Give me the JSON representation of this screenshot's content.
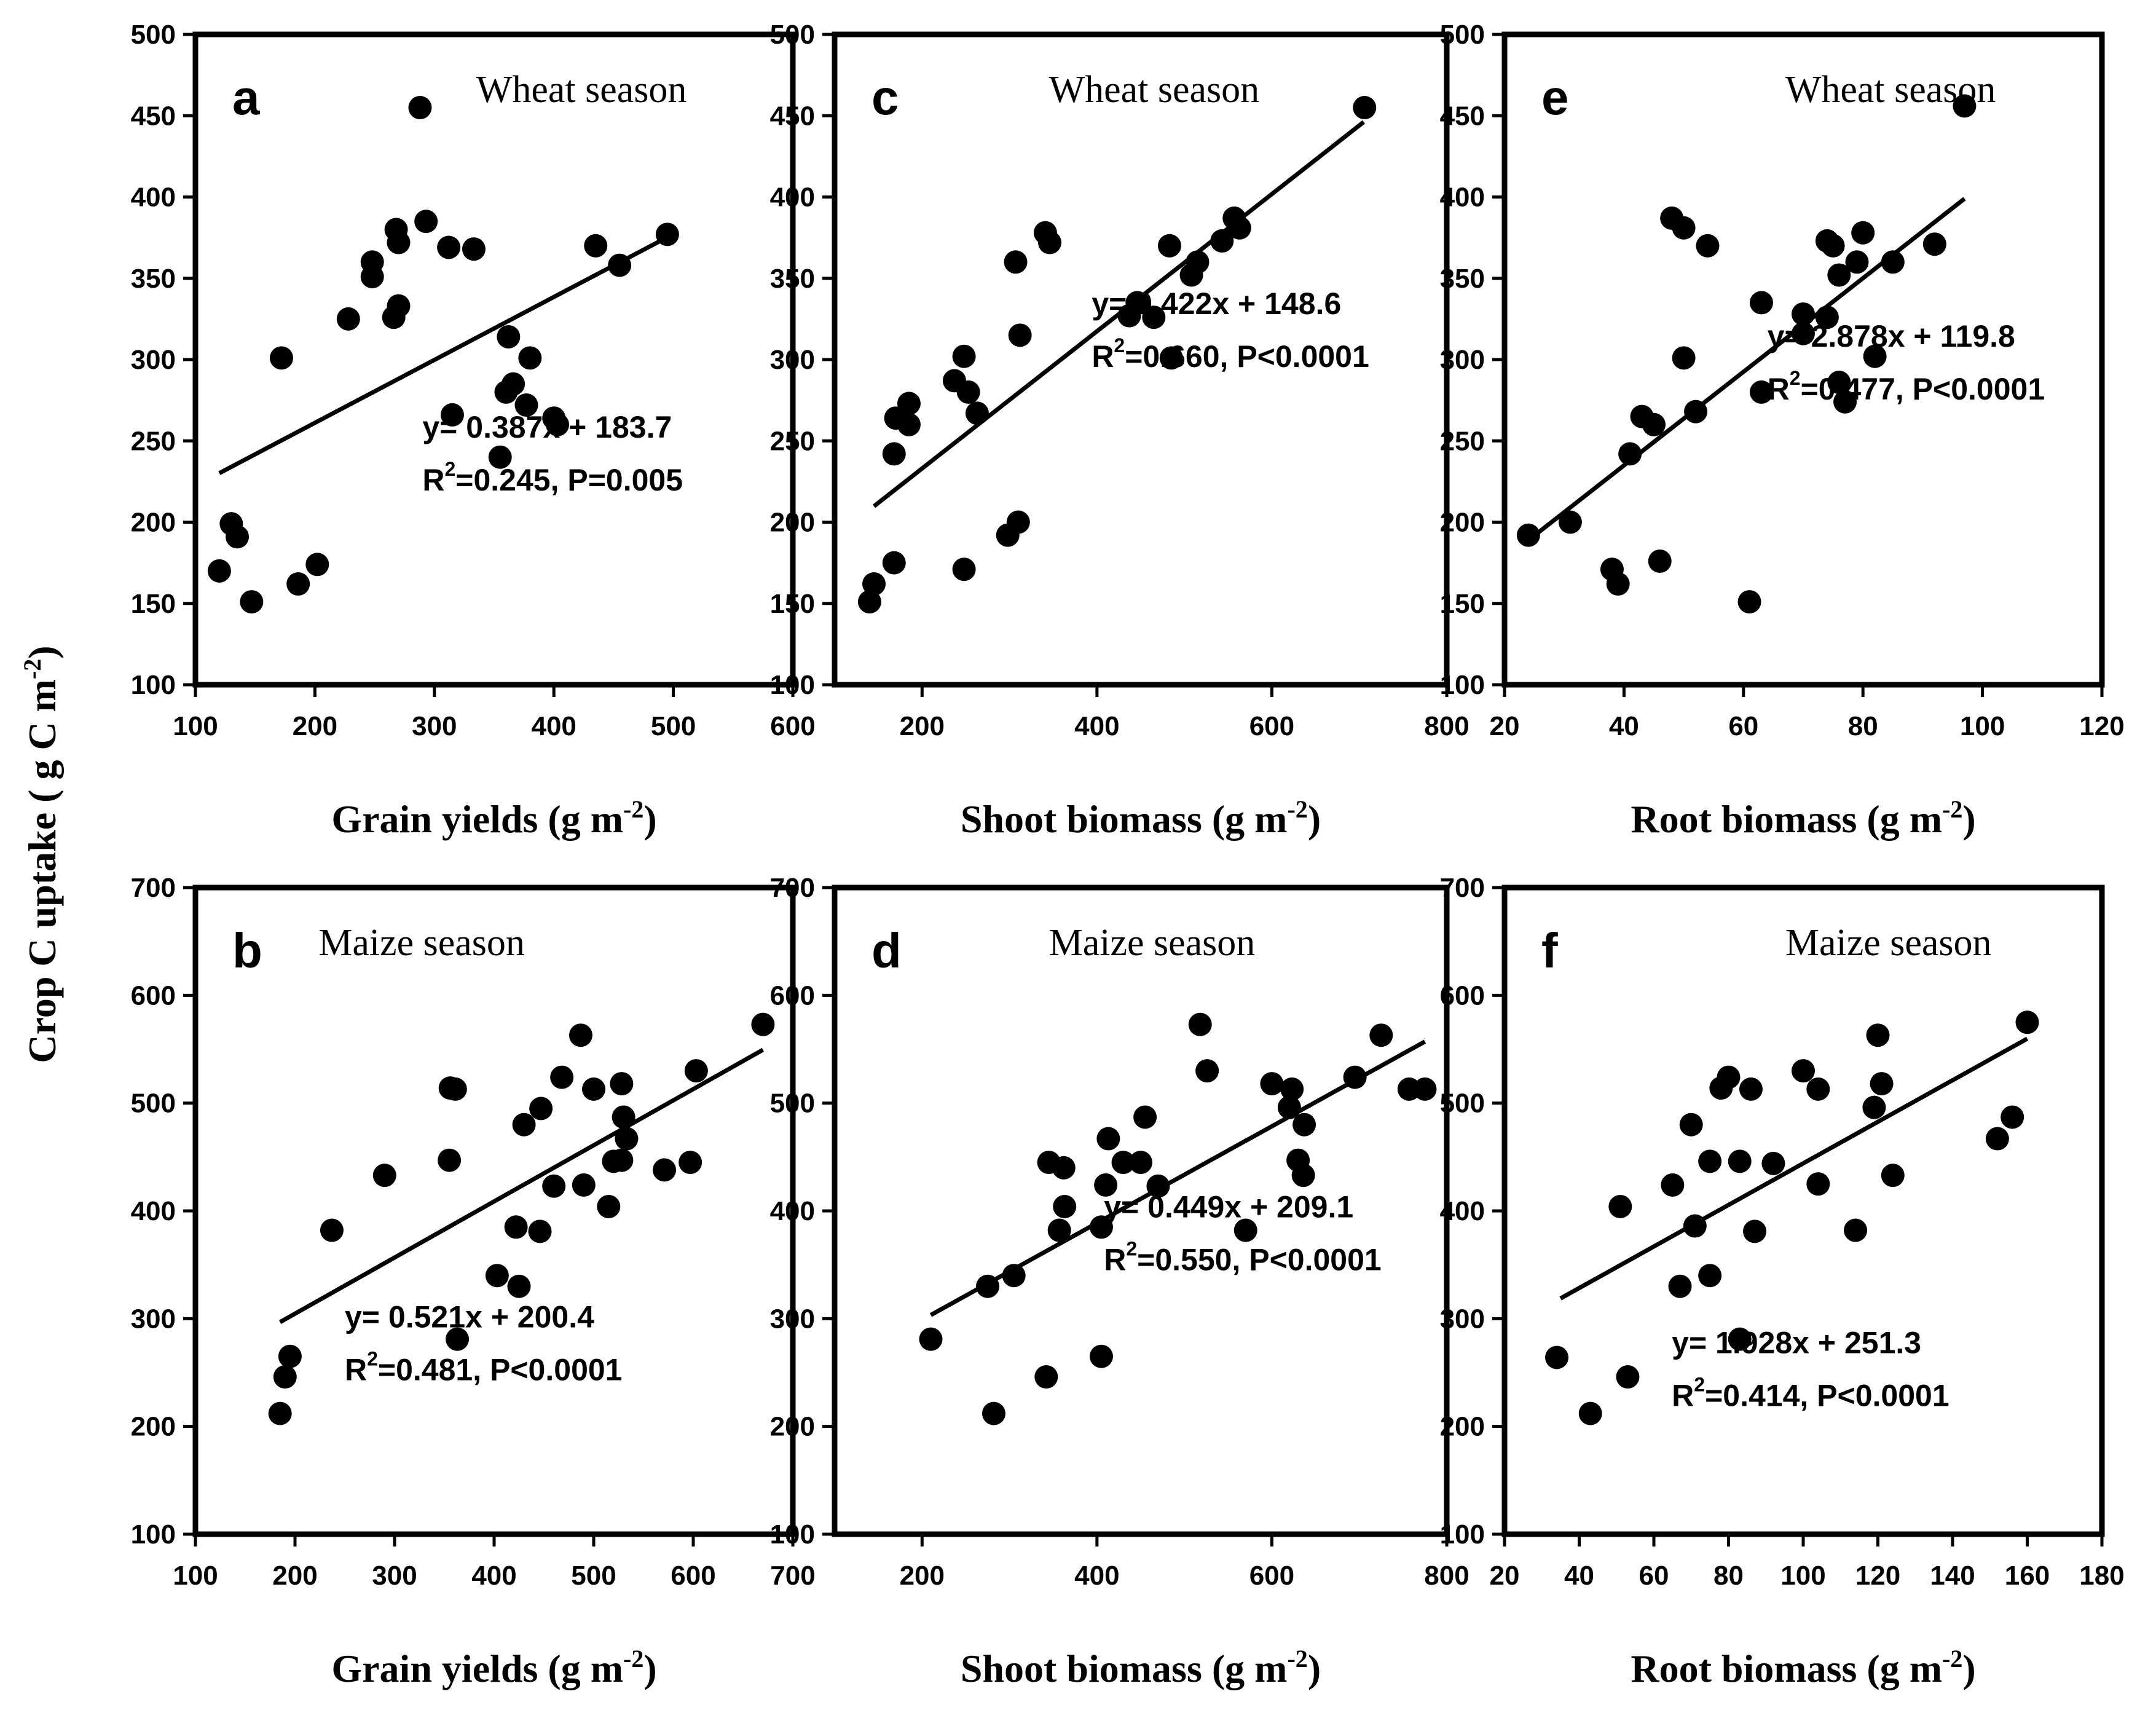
{
  "ylabel_shared": {
    "main": "Crop C uptake ( g C m",
    "sup": "-2",
    "end": ")"
  },
  "chart_data": [
    {
      "id": "a",
      "type": "scatter",
      "panel_label": "a",
      "season": "Wheat season",
      "xlabel": {
        "main": "Grain yields (g m",
        "sup": "-2",
        "end": ")"
      },
      "xlim": [
        100,
        600
      ],
      "ylim": [
        100,
        500
      ],
      "xticks": [
        "100",
        "200",
        "300",
        "400",
        "500",
        "600"
      ],
      "yticks": [
        "100",
        "150",
        "200",
        "250",
        "300",
        "350",
        "400",
        "450",
        "500"
      ],
      "regression": {
        "slope": 0.387,
        "intercept": 183.7,
        "x_range": [
          120,
          495
        ]
      },
      "equation": "y= 0.387x + 183.7",
      "stats": {
        "r": "R",
        "sup": "2",
        "rest": "=0.245, P=0.005"
      },
      "points": [
        [
          288,
          455
        ],
        [
          293,
          385
        ],
        [
          268,
          380
        ],
        [
          270,
          372
        ],
        [
          312,
          369
        ],
        [
          333,
          368
        ],
        [
          248,
          360
        ],
        [
          248,
          351
        ],
        [
          270,
          333
        ],
        [
          266,
          326
        ],
        [
          228,
          325
        ],
        [
          435,
          370
        ],
        [
          455,
          358
        ],
        [
          495,
          377
        ],
        [
          362,
          314
        ],
        [
          380,
          301
        ],
        [
          366,
          285
        ],
        [
          360,
          280
        ],
        [
          377,
          272
        ],
        [
          400,
          264
        ],
        [
          403,
          260
        ],
        [
          315,
          266
        ],
        [
          355,
          240
        ],
        [
          172,
          301
        ],
        [
          130,
          199
        ],
        [
          135,
          191
        ],
        [
          120,
          170
        ],
        [
          147,
          151
        ],
        [
          186,
          162
        ],
        [
          202,
          174
        ]
      ]
    },
    {
      "id": "c",
      "type": "scatter",
      "panel_label": "c",
      "season": "Wheat season",
      "xlabel": {
        "main": "Shoot biomass (g m",
        "sup": "-2",
        "end": ")"
      },
      "xlim": [
        100,
        800
      ],
      "ylim": [
        100,
        500
      ],
      "xticks": [
        "200",
        "400",
        "600",
        "800"
      ],
      "yticks": [
        "100",
        "150",
        "200",
        "250",
        "300",
        "350",
        "400",
        "450",
        "500"
      ],
      "regression": {
        "slope": 0.422,
        "intercept": 148.6,
        "x_range": [
          145,
          705
        ]
      },
      "equation": "y= 0.422x + 148.6",
      "stats": {
        "r": "R",
        "sup": "2",
        "rest": "=0.660, P<0.0001"
      },
      "points": [
        [
          706,
          455
        ],
        [
          557,
          387
        ],
        [
          563,
          381
        ],
        [
          341,
          378
        ],
        [
          346,
          372
        ],
        [
          543,
          373
        ],
        [
          483,
          370
        ],
        [
          515,
          360
        ],
        [
          508,
          352
        ],
        [
          307,
          360
        ],
        [
          446,
          335
        ],
        [
          437,
          327
        ],
        [
          465,
          326
        ],
        [
          485,
          301
        ],
        [
          312,
          315
        ],
        [
          248,
          302
        ],
        [
          253,
          280
        ],
        [
          237,
          287
        ],
        [
          263,
          267
        ],
        [
          185,
          273
        ],
        [
          170,
          264
        ],
        [
          168,
          242
        ],
        [
          185,
          260
        ],
        [
          298,
          192
        ],
        [
          310,
          200
        ],
        [
          168,
          175
        ],
        [
          248,
          171
        ],
        [
          145,
          162
        ],
        [
          140,
          151
        ]
      ]
    },
    {
      "id": "e",
      "type": "scatter",
      "panel_label": "e",
      "season": "Wheat season",
      "xlabel": {
        "main": "Root biomass (g m",
        "sup": "-2",
        "end": ")"
      },
      "xlim": [
        20,
        120
      ],
      "ylim": [
        100,
        500
      ],
      "xticks": [
        "20",
        "40",
        "60",
        "80",
        "100",
        "120"
      ],
      "yticks": [
        "100",
        "150",
        "200",
        "250",
        "300",
        "350",
        "400",
        "450",
        "500"
      ],
      "regression": {
        "slope": 2.878,
        "intercept": 119.8,
        "x_range": [
          24,
          97
        ]
      },
      "equation": "y= 2.878x + 119.8",
      "stats": {
        "r": "R",
        "sup": "2",
        "rest": "=0.477, P<0.0001"
      },
      "points": [
        [
          97,
          456
        ],
        [
          48,
          387
        ],
        [
          50,
          381
        ],
        [
          54,
          370
        ],
        [
          74,
          373
        ],
        [
          75,
          370
        ],
        [
          80,
          378
        ],
        [
          79,
          360
        ],
        [
          76,
          352
        ],
        [
          85,
          360
        ],
        [
          92,
          371
        ],
        [
          63,
          335
        ],
        [
          70,
          328
        ],
        [
          74,
          326
        ],
        [
          70,
          316
        ],
        [
          50,
          301
        ],
        [
          82,
          302
        ],
        [
          63,
          280
        ],
        [
          76,
          286
        ],
        [
          77,
          274
        ],
        [
          43,
          265
        ],
        [
          45,
          260
        ],
        [
          52,
          268
        ],
        [
          41,
          242
        ],
        [
          24,
          192
        ],
        [
          31,
          200
        ],
        [
          38,
          171
        ],
        [
          39,
          162
        ],
        [
          46,
          176
        ],
        [
          61,
          151
        ]
      ]
    },
    {
      "id": "b",
      "type": "scatter",
      "panel_label": "b",
      "season": "Maize season",
      "xlabel": {
        "main": "Grain yields (g m",
        "sup": "-2",
        "end": ")"
      },
      "xlim": [
        100,
        700
      ],
      "ylim": [
        100,
        700
      ],
      "xticks": [
        "100",
        "200",
        "300",
        "400",
        "500",
        "600",
        "700"
      ],
      "yticks": [
        "100",
        "200",
        "300",
        "400",
        "500",
        "600",
        "700"
      ],
      "regression": {
        "slope": 0.521,
        "intercept": 200.4,
        "x_range": [
          185,
          670
        ]
      },
      "equation": "y= 0.521x + 200.4",
      "stats": {
        "r": "R",
        "sup": "2",
        "rest": "=0.481, P<0.0001"
      },
      "points": [
        [
          670,
          573
        ],
        [
          487,
          563
        ],
        [
          356,
          514
        ],
        [
          361,
          513
        ],
        [
          468,
          524
        ],
        [
          528,
          518
        ],
        [
          603,
          530
        ],
        [
          500,
          513
        ],
        [
          447,
          495
        ],
        [
          530,
          487
        ],
        [
          533,
          467
        ],
        [
          355,
          447
        ],
        [
          290,
          433
        ],
        [
          237,
          382
        ],
        [
          520,
          446
        ],
        [
          528,
          447
        ],
        [
          571,
          438
        ],
        [
          597,
          445
        ],
        [
          460,
          423
        ],
        [
          490,
          424
        ],
        [
          515,
          404
        ],
        [
          430,
          480
        ],
        [
          422,
          385
        ],
        [
          446,
          381
        ],
        [
          403,
          340
        ],
        [
          425,
          330
        ],
        [
          363,
          281
        ],
        [
          195,
          265
        ],
        [
          190,
          246
        ],
        [
          185,
          212
        ]
      ]
    },
    {
      "id": "d",
      "type": "scatter",
      "panel_label": "d",
      "season": "Maize season",
      "xlabel": {
        "main": "Shoot biomass (g m",
        "sup": "-2",
        "end": ")"
      },
      "xlim": [
        100,
        800
      ],
      "ylim": [
        100,
        700
      ],
      "xticks": [
        "200",
        "400",
        "600",
        "800"
      ],
      "yticks": [
        "100",
        "200",
        "300",
        "400",
        "500",
        "600",
        "700"
      ],
      "regression": {
        "slope": 0.449,
        "intercept": 209.1,
        "x_range": [
          210,
          775
        ]
      },
      "equation": "y= 0.449x + 209.1",
      "stats": {
        "r": "R",
        "sup": "2",
        "rest": "=0.550, P<0.0001"
      },
      "points": [
        [
          518,
          573
        ],
        [
          725,
          563
        ],
        [
          526,
          530
        ],
        [
          600,
          518
        ],
        [
          623,
          513
        ],
        [
          695,
          524
        ],
        [
          757,
          513
        ],
        [
          775,
          513
        ],
        [
          620,
          496
        ],
        [
          455,
          487
        ],
        [
          413,
          467
        ],
        [
          345,
          445
        ],
        [
          362,
          440
        ],
        [
          430,
          445
        ],
        [
          450,
          445
        ],
        [
          410,
          424
        ],
        [
          470,
          423
        ],
        [
          630,
          447
        ],
        [
          636,
          433
        ],
        [
          637,
          480
        ],
        [
          363,
          404
        ],
        [
          357,
          382
        ],
        [
          405,
          385
        ],
        [
          570,
          382
        ],
        [
          305,
          340
        ],
        [
          275,
          330
        ],
        [
          210,
          281
        ],
        [
          405,
          265
        ],
        [
          342,
          246
        ],
        [
          282,
          212
        ]
      ]
    },
    {
      "id": "f",
      "type": "scatter",
      "panel_label": "f",
      "season": "Maize season",
      "xlabel": {
        "main": "Root biomass (g m",
        "sup": "-2",
        "end": ")"
      },
      "xlim": [
        20,
        180
      ],
      "ylim": [
        100,
        700
      ],
      "xticks": [
        "20",
        "40",
        "60",
        "80",
        "100",
        "120",
        "140",
        "160",
        "180"
      ],
      "yticks": [
        "100",
        "200",
        "300",
        "400",
        "500",
        "600",
        "700"
      ],
      "regression": {
        "slope": 1.928,
        "intercept": 251.3,
        "x_range": [
          35,
          160
        ]
      },
      "equation": "y= 1.928x + 251.3",
      "stats": {
        "r": "R",
        "sup": "2",
        "rest": "=0.414, P<0.0001"
      },
      "points": [
        [
          160,
          575
        ],
        [
          120,
          563
        ],
        [
          80,
          524
        ],
        [
          78,
          514
        ],
        [
          100,
          530
        ],
        [
          86,
          513
        ],
        [
          104,
          513
        ],
        [
          121,
          518
        ],
        [
          119,
          496
        ],
        [
          156,
          487
        ],
        [
          152,
          467
        ],
        [
          70,
          480
        ],
        [
          75,
          446
        ],
        [
          83,
          446
        ],
        [
          92,
          444
        ],
        [
          65,
          424
        ],
        [
          104,
          425
        ],
        [
          124,
          433
        ],
        [
          51,
          404
        ],
        [
          71,
          386
        ],
        [
          87,
          381
        ],
        [
          114,
          382
        ],
        [
          75,
          340
        ],
        [
          67,
          330
        ],
        [
          83,
          281
        ],
        [
          34,
          264
        ],
        [
          53,
          246
        ],
        [
          43,
          212
        ]
      ]
    }
  ]
}
